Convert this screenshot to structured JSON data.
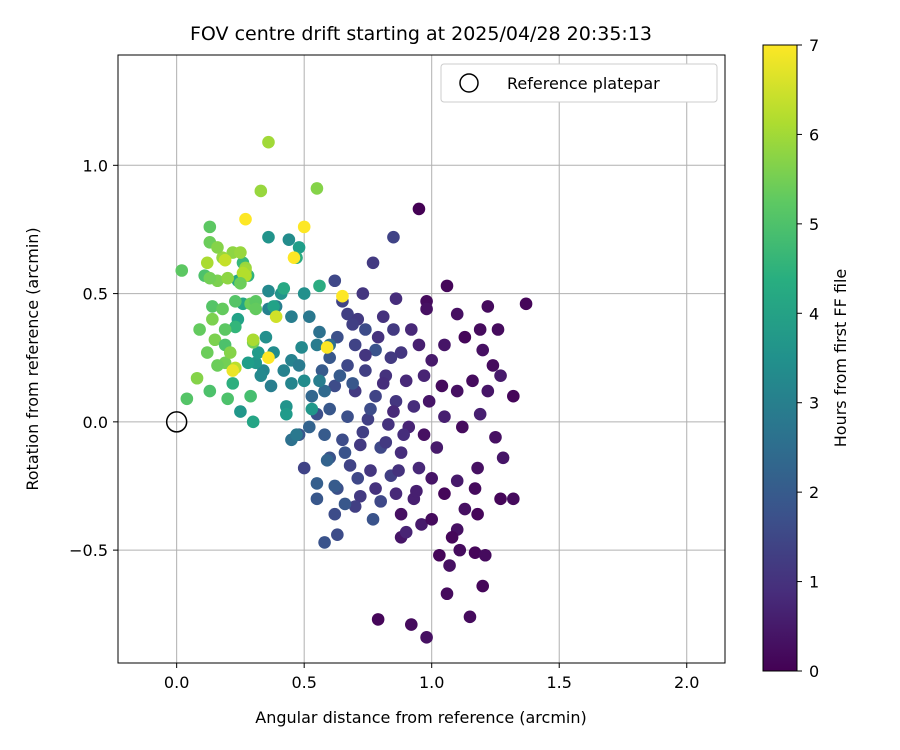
{
  "chart_data": {
    "type": "scatter",
    "title": "FOV centre drift starting at 2025/04/28 20:35:13",
    "xlabel": "Angular distance from reference (arcmin)",
    "ylabel": "Rotation from reference (arcmin)",
    "xlim": [
      -0.23,
      2.15
    ],
    "ylim": [
      -0.94,
      1.43
    ],
    "xticks": [
      "0.0",
      "0.5",
      "1.0",
      "1.5",
      "2.0"
    ],
    "xtick_values": [
      0,
      0.5,
      1.0,
      1.5,
      2.0
    ],
    "yticks": [
      "−0.5",
      "0.0",
      "0.5",
      "1.0"
    ],
    "ytick_values": [
      -0.5,
      0,
      0.5,
      1.0
    ],
    "grid": true,
    "legend": {
      "placement": "top-right",
      "entries": [
        "Reference platepar"
      ]
    },
    "reference_point": {
      "x": 0.0,
      "y": 0.0
    },
    "colorbar": {
      "label": "Hours from first FF file",
      "range": [
        0,
        7
      ],
      "ticks": [
        "0",
        "1",
        "2",
        "3",
        "4",
        "5",
        "6",
        "7"
      ],
      "colormap": "viridis"
    },
    "points": [
      [
        0.95,
        0.83,
        0.0
      ],
      [
        1.06,
        0.53,
        0.1
      ],
      [
        0.98,
        0.47,
        0.2
      ],
      [
        1.22,
        0.45,
        0.2
      ],
      [
        1.37,
        0.46,
        0.1
      ],
      [
        1.1,
        0.42,
        0.3
      ],
      [
        1.19,
        0.36,
        0.2
      ],
      [
        1.26,
        0.36,
        0.2
      ],
      [
        1.05,
        0.3,
        0.4
      ],
      [
        1.13,
        0.33,
        0.1
      ],
      [
        1.2,
        0.28,
        0.3
      ],
      [
        1.24,
        0.22,
        0.2
      ],
      [
        1.27,
        0.18,
        0.5
      ],
      [
        1.16,
        0.16,
        0.2
      ],
      [
        1.1,
        0.12,
        0.3
      ],
      [
        1.22,
        0.12,
        0.4
      ],
      [
        1.32,
        0.1,
        0.1
      ],
      [
        1.19,
        0.03,
        0.6
      ],
      [
        1.12,
        -0.02,
        0.2
      ],
      [
        1.25,
        -0.06,
        0.3
      ],
      [
        1.28,
        -0.14,
        0.4
      ],
      [
        1.18,
        -0.18,
        0.3
      ],
      [
        1.1,
        -0.23,
        0.5
      ],
      [
        1.05,
        -0.28,
        0.1
      ],
      [
        1.17,
        -0.26,
        0.2
      ],
      [
        1.27,
        -0.3,
        0.1
      ],
      [
        1.32,
        -0.3,
        0.2
      ],
      [
        1.13,
        -0.34,
        0.3
      ],
      [
        1.18,
        -0.36,
        0.1
      ],
      [
        1.1,
        -0.42,
        0.3
      ],
      [
        1.08,
        -0.45,
        0.1
      ],
      [
        1.11,
        -0.5,
        0.2
      ],
      [
        1.17,
        -0.51,
        0.1
      ],
      [
        1.21,
        -0.52,
        0.2
      ],
      [
        1.03,
        -0.52,
        0.1
      ],
      [
        1.07,
        -0.56,
        0.3
      ],
      [
        1.2,
        -0.64,
        0.1
      ],
      [
        1.06,
        -0.67,
        0.2
      ],
      [
        0.79,
        -0.77,
        0.1
      ],
      [
        0.92,
        -0.79,
        0.2
      ],
      [
        0.98,
        -0.84,
        0.3
      ],
      [
        1.15,
        -0.76,
        0.2
      ],
      [
        0.88,
        -0.45,
        0.4
      ],
      [
        0.9,
        -0.43,
        0.7
      ],
      [
        0.96,
        -0.4,
        0.5
      ],
      [
        0.88,
        -0.36,
        0.3
      ],
      [
        1.0,
        -0.38,
        0.2
      ],
      [
        0.93,
        -0.3,
        0.6
      ],
      [
        1.0,
        -0.22,
        0.4
      ],
      [
        0.95,
        -0.18,
        0.8
      ],
      [
        1.02,
        -0.1,
        0.5
      ],
      [
        0.97,
        -0.05,
        0.3
      ],
      [
        1.05,
        0.02,
        0.6
      ],
      [
        0.99,
        0.08,
        0.4
      ],
      [
        1.04,
        0.14,
        0.2
      ],
      [
        0.97,
        0.18,
        0.7
      ],
      [
        1.0,
        0.24,
        0.5
      ],
      [
        0.95,
        0.3,
        0.6
      ],
      [
        0.92,
        0.36,
        0.8
      ],
      [
        0.98,
        0.44,
        0.3
      ],
      [
        0.85,
        0.72,
        1.4
      ],
      [
        0.77,
        0.62,
        1.2
      ],
      [
        0.62,
        0.55,
        1.5
      ],
      [
        0.73,
        0.5,
        1.1
      ],
      [
        0.86,
        0.48,
        0.9
      ],
      [
        0.67,
        0.42,
        1.3
      ],
      [
        0.81,
        0.41,
        1.0
      ],
      [
        0.74,
        0.36,
        1.6
      ],
      [
        0.85,
        0.36,
        1.2
      ],
      [
        0.63,
        0.33,
        1.7
      ],
      [
        0.7,
        0.3,
        1.4
      ],
      [
        0.78,
        0.28,
        1.8
      ],
      [
        0.88,
        0.27,
        1.1
      ],
      [
        0.6,
        0.25,
        1.9
      ],
      [
        0.67,
        0.22,
        1.5
      ],
      [
        0.74,
        0.2,
        1.3
      ],
      [
        0.82,
        0.18,
        1.0
      ],
      [
        0.9,
        0.16,
        0.8
      ],
      [
        0.62,
        0.14,
        1.6
      ],
      [
        0.7,
        0.12,
        1.2
      ],
      [
        0.78,
        0.1,
        1.4
      ],
      [
        0.86,
        0.08,
        1.1
      ],
      [
        0.93,
        0.06,
        0.9
      ],
      [
        0.6,
        0.05,
        1.9
      ],
      [
        0.67,
        0.02,
        1.7
      ],
      [
        0.75,
        0.01,
        1.3
      ],
      [
        0.83,
        -0.01,
        1.0
      ],
      [
        0.91,
        -0.02,
        0.7
      ],
      [
        0.58,
        -0.05,
        2.0
      ],
      [
        0.65,
        -0.07,
        1.6
      ],
      [
        0.72,
        -0.09,
        1.2
      ],
      [
        0.8,
        -0.1,
        1.5
      ],
      [
        0.88,
        -0.12,
        0.9
      ],
      [
        0.6,
        -0.14,
        1.8
      ],
      [
        0.68,
        -0.17,
        1.4
      ],
      [
        0.76,
        -0.19,
        1.1
      ],
      [
        0.84,
        -0.21,
        1.3
      ],
      [
        0.55,
        -0.24,
        2.1
      ],
      [
        0.63,
        -0.26,
        1.7
      ],
      [
        0.72,
        -0.29,
        1.2
      ],
      [
        0.8,
        -0.31,
        1.5
      ],
      [
        0.55,
        -0.3,
        1.9
      ],
      [
        0.62,
        -0.36,
        1.6
      ],
      [
        0.7,
        -0.33,
        1.3
      ],
      [
        0.77,
        -0.38,
        1.8
      ],
      [
        0.58,
        -0.47,
        1.8
      ],
      [
        0.63,
        -0.44,
        1.6
      ],
      [
        0.5,
        -0.18,
        1.4
      ],
      [
        0.48,
        -0.05,
        1.9
      ],
      [
        0.52,
        -0.02,
        2.2
      ],
      [
        0.55,
        0.03,
        1.7
      ],
      [
        0.53,
        0.1,
        2.3
      ],
      [
        0.57,
        0.2,
        2.0
      ],
      [
        0.6,
        0.3,
        2.5
      ],
      [
        0.65,
        0.47,
        1.4
      ],
      [
        0.71,
        0.4,
        1.2
      ],
      [
        0.79,
        0.33,
        1.0
      ],
      [
        0.69,
        0.15,
        1.9
      ],
      [
        0.76,
        0.05,
        1.6
      ],
      [
        0.84,
        0.25,
        1.2
      ],
      [
        0.73,
        -0.04,
        1.3
      ],
      [
        0.66,
        -0.12,
        1.8
      ],
      [
        0.82,
        -0.08,
        1.2
      ],
      [
        0.71,
        -0.22,
        1.5
      ],
      [
        0.87,
        -0.19,
        1.0
      ],
      [
        0.74,
        0.26,
        1.1
      ],
      [
        0.81,
        0.15,
        0.9
      ],
      [
        0.69,
        0.38,
        1.3
      ],
      [
        0.64,
        0.18,
        2.0
      ],
      [
        0.58,
        0.12,
        2.4
      ],
      [
        0.78,
        -0.26,
        1.0
      ],
      [
        0.86,
        -0.28,
        0.8
      ],
      [
        0.94,
        -0.27,
        0.6
      ],
      [
        0.89,
        -0.05,
        0.9
      ],
      [
        0.85,
        0.04,
        0.8
      ],
      [
        0.59,
        -0.15,
        2.2
      ],
      [
        0.62,
        -0.25,
        2.0
      ],
      [
        0.66,
        -0.32,
        1.9
      ],
      [
        0.56,
        0.35,
        2.6
      ],
      [
        0.52,
        0.41,
        2.8
      ],
      [
        0.55,
        0.3,
        2.9
      ],
      [
        0.45,
        0.41,
        3.0
      ],
      [
        0.45,
        0.24,
        3.1
      ],
      [
        0.49,
        0.29,
        3.3
      ],
      [
        0.5,
        0.5,
        3.5
      ],
      [
        0.41,
        0.5,
        3.6
      ],
      [
        0.48,
        0.68,
        3.9
      ],
      [
        0.44,
        0.71,
        3.4
      ],
      [
        0.36,
        0.72,
        3.6
      ],
      [
        0.36,
        0.51,
        3.3
      ],
      [
        0.36,
        0.44,
        3.1
      ],
      [
        0.39,
        0.45,
        3.0
      ],
      [
        0.35,
        0.33,
        3.5
      ],
      [
        0.38,
        0.27,
        3.4
      ],
      [
        0.34,
        0.2,
        3.2
      ],
      [
        0.31,
        0.23,
        3.7
      ],
      [
        0.37,
        0.14,
        3.0
      ],
      [
        0.45,
        0.15,
        3.2
      ],
      [
        0.43,
        0.06,
        3.6
      ],
      [
        0.43,
        0.03,
        3.8
      ],
      [
        0.45,
        -0.07,
        2.6
      ],
      [
        0.47,
        -0.05,
        2.8
      ],
      [
        0.53,
        0.05,
        3.7
      ],
      [
        0.56,
        0.16,
        3.0
      ],
      [
        0.5,
        0.16,
        3.4
      ],
      [
        0.42,
        0.2,
        3.1
      ],
      [
        0.48,
        0.22,
        2.9
      ],
      [
        0.32,
        0.27,
        3.8
      ],
      [
        0.33,
        0.18,
        3.3
      ],
      [
        0.28,
        0.23,
        3.9
      ],
      [
        0.25,
        0.04,
        3.7
      ],
      [
        0.24,
        0.4,
        4.0
      ],
      [
        0.26,
        0.46,
        4.1
      ],
      [
        0.24,
        0.55,
        4.2
      ],
      [
        0.56,
        0.53,
        4.3
      ],
      [
        0.47,
        0.64,
        4.3
      ],
      [
        0.3,
        0.0,
        4.1
      ],
      [
        0.22,
        0.15,
        4.4
      ],
      [
        0.23,
        0.37,
        4.6
      ],
      [
        0.28,
        0.57,
        4.5
      ],
      [
        0.26,
        0.62,
        4.7
      ],
      [
        0.29,
        0.1,
        4.9
      ],
      [
        0.2,
        0.09,
        5.0
      ],
      [
        0.42,
        0.52,
        4.2
      ],
      [
        0.38,
        0.45,
        4.0
      ],
      [
        0.13,
        0.12,
        5.0
      ],
      [
        0.14,
        0.45,
        5.1
      ],
      [
        0.11,
        0.57,
        5.0
      ],
      [
        0.13,
        0.76,
        5.2
      ],
      [
        0.13,
        0.7,
        5.4
      ],
      [
        0.02,
        0.59,
        5.2
      ],
      [
        0.04,
        0.09,
        5.1
      ],
      [
        0.09,
        0.36,
        5.3
      ],
      [
        0.12,
        0.27,
        5.4
      ],
      [
        0.19,
        0.23,
        5.5
      ],
      [
        0.15,
        0.32,
        5.6
      ],
      [
        0.18,
        0.44,
        5.3
      ],
      [
        0.19,
        0.36,
        5.2
      ],
      [
        0.19,
        0.3,
        5.0
      ],
      [
        0.16,
        0.22,
        5.4
      ],
      [
        0.29,
        0.46,
        5.4
      ],
      [
        0.31,
        0.47,
        5.2
      ],
      [
        0.3,
        0.31,
        5.5
      ],
      [
        0.21,
        0.27,
        5.7
      ],
      [
        0.16,
        0.55,
        5.6
      ],
      [
        0.22,
        0.66,
        5.8
      ],
      [
        0.27,
        0.6,
        5.9
      ],
      [
        0.18,
        0.64,
        5.9
      ],
      [
        0.14,
        0.4,
        5.6
      ],
      [
        0.23,
        0.47,
        5.1
      ],
      [
        0.16,
        0.68,
        5.7
      ],
      [
        0.25,
        0.66,
        5.9
      ],
      [
        0.27,
        0.59,
        6.0
      ],
      [
        0.31,
        0.44,
        5.3
      ],
      [
        0.13,
        0.56,
        5.5
      ],
      [
        0.08,
        0.17,
        5.7
      ],
      [
        0.12,
        0.62,
        6.1
      ],
      [
        0.2,
        0.56,
        5.8
      ],
      [
        0.26,
        0.58,
        6.2
      ],
      [
        0.23,
        0.21,
        6.3
      ],
      [
        0.55,
        0.91,
        5.7
      ],
      [
        0.33,
        0.9,
        5.9
      ],
      [
        0.36,
        1.09,
        6.0
      ],
      [
        0.19,
        0.63,
        6.4
      ],
      [
        0.27,
        0.57,
        6.2
      ],
      [
        0.3,
        0.32,
        6.1
      ],
      [
        0.39,
        0.41,
        6.5
      ],
      [
        0.22,
        0.2,
        6.8
      ],
      [
        0.36,
        0.25,
        7.0
      ],
      [
        0.27,
        0.79,
        7.0
      ],
      [
        0.5,
        0.76,
        7.0
      ],
      [
        0.46,
        0.64,
        7.0
      ],
      [
        0.65,
        0.49,
        7.0
      ],
      [
        0.59,
        0.29,
        7.0
      ],
      [
        0.25,
        0.54,
        5.4
      ]
    ]
  }
}
